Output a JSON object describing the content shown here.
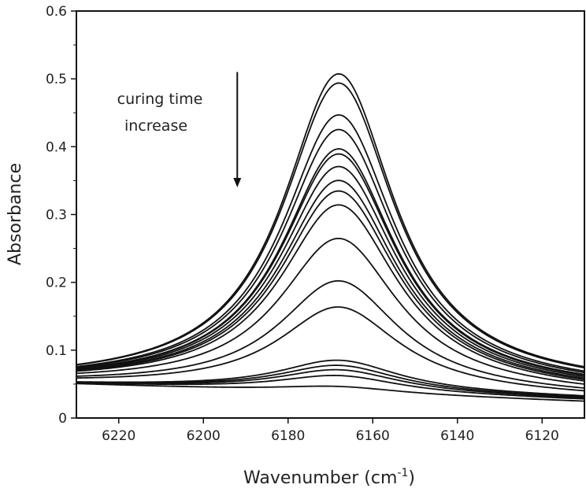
{
  "chart_data": {
    "type": "line",
    "title": "",
    "xlabel": "Wavenumber (cm",
    "xlabel_sup": "-1",
    "xlabel_close": ")",
    "ylabel": "Absorbance",
    "xlim": [
      6230,
      6110
    ],
    "ylim": [
      0,
      0.6
    ],
    "x_reversed": true,
    "x_ticks": [
      6220,
      6200,
      6180,
      6160,
      6140,
      6120
    ],
    "y_ticks": [
      0,
      0.1,
      0.2,
      0.3,
      0.4,
      0.5,
      0.6
    ],
    "x_tick_labels": [
      "6220",
      "6200",
      "6180",
      "6160",
      "6140",
      "6120"
    ],
    "y_tick_labels": [
      "0",
      "0.1",
      "0.2",
      "0.3",
      "0.4",
      "0.5",
      "0.6"
    ],
    "grid": false,
    "line_color": "#111111",
    "peak_wavenumber": 6168,
    "annotation": {
      "lines": [
        "curing time",
        "increase"
      ],
      "arrow": "down",
      "arrow_from": [
        6192,
        0.51
      ],
      "arrow_to": [
        6192,
        0.34
      ]
    },
    "series": [
      {
        "peak": 0.511,
        "baseline_left": 0.05,
        "baseline_right": 0.043
      },
      {
        "peak": 0.498,
        "baseline_left": 0.05,
        "baseline_right": 0.042
      },
      {
        "peak": 0.452,
        "baseline_left": 0.05,
        "baseline_right": 0.04
      },
      {
        "peak": 0.431,
        "baseline_left": 0.05,
        "baseline_right": 0.039
      },
      {
        "peak": 0.403,
        "baseline_left": 0.05,
        "baseline_right": 0.038
      },
      {
        "peak": 0.396,
        "baseline_left": 0.05,
        "baseline_right": 0.037
      },
      {
        "peak": 0.378,
        "baseline_left": 0.05,
        "baseline_right": 0.036
      },
      {
        "peak": 0.358,
        "baseline_left": 0.05,
        "baseline_right": 0.035
      },
      {
        "peak": 0.343,
        "baseline_left": 0.05,
        "baseline_right": 0.034
      },
      {
        "peak": 0.323,
        "baseline_left": 0.05,
        "baseline_right": 0.033
      },
      {
        "peak": 0.274,
        "baseline_left": 0.05,
        "baseline_right": 0.032
      },
      {
        "peak": 0.212,
        "baseline_left": 0.05,
        "baseline_right": 0.031
      },
      {
        "peak": 0.174,
        "baseline_left": 0.05,
        "baseline_right": 0.03
      },
      {
        "peak": 0.096,
        "baseline_left": 0.05,
        "baseline_right": 0.029
      },
      {
        "peak": 0.089,
        "baseline_left": 0.05,
        "baseline_right": 0.028
      },
      {
        "peak": 0.083,
        "baseline_left": 0.05,
        "baseline_right": 0.027
      },
      {
        "peak": 0.075,
        "baseline_left": 0.05,
        "baseline_right": 0.026
      },
      {
        "peak": 0.06,
        "baseline_left": 0.05,
        "baseline_right": 0.024
      }
    ]
  }
}
